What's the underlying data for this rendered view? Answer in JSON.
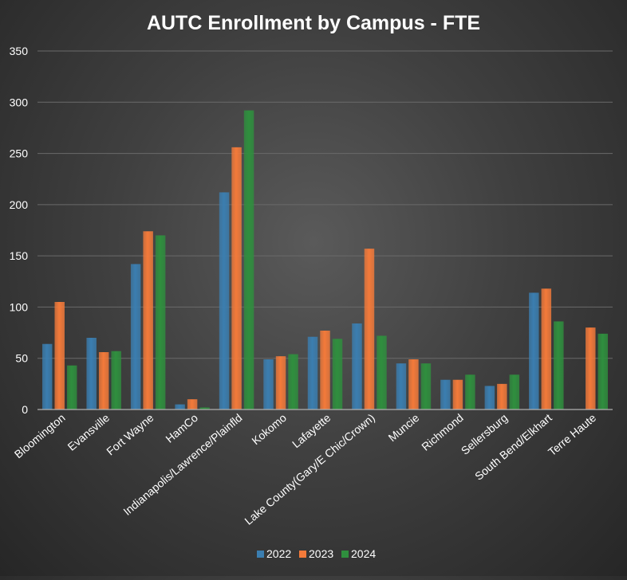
{
  "chart_data": {
    "type": "bar",
    "title": "AUTC Enrollment by Campus - FTE",
    "xlabel": "",
    "ylabel": "",
    "ylim": [
      0,
      350
    ],
    "yticks": [
      "0",
      "50",
      "100",
      "150",
      "200",
      "250",
      "300",
      "350"
    ],
    "grid": true,
    "legend_position": "bottom",
    "categories": [
      "Bloomington",
      "Evansville",
      "Fort Wayne",
      "HamCo",
      "Indianapolis/Lawrence/Plainfld",
      "Kokomo",
      "Lafayette",
      "Lake County(Gary/E Chic/Crown)",
      "Muncie",
      "Richmond",
      "Sellersburg",
      "South Bend/Elkhart",
      "Terre Haute"
    ],
    "series": [
      {
        "name": "2022",
        "color": "#3b7eb0",
        "values": [
          64,
          70,
          142,
          5,
          212,
          49,
          71,
          84,
          45,
          29,
          23,
          114,
          null
        ]
      },
      {
        "name": "2023",
        "color": "#f37a3a",
        "values": [
          105,
          56,
          174,
          10,
          256,
          52,
          77,
          157,
          49,
          29,
          25,
          118,
          80
        ]
      },
      {
        "name": "2024",
        "color": "#2f8f3e",
        "values": [
          43,
          57,
          170,
          2,
          292,
          54,
          69,
          72,
          45,
          34,
          34,
          86,
          74
        ]
      }
    ]
  }
}
